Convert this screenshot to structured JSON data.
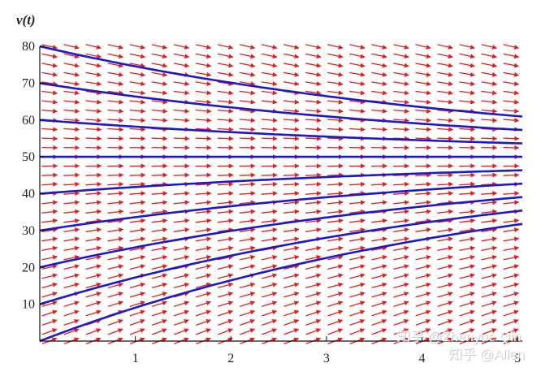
{
  "chart_data": {
    "type": "line",
    "title": "",
    "ylabel": "v(t)",
    "xlabel": "",
    "xlim": [
      0,
      5.05
    ],
    "ylim": [
      0,
      80
    ],
    "x_ticks": [
      1,
      2,
      3,
      4,
      5
    ],
    "x_tick_labels": [
      "1",
      "2",
      "3",
      "4",
      "5"
    ],
    "y_ticks": [
      10,
      20,
      30,
      40,
      50,
      60,
      70,
      80
    ],
    "y_tick_labels": [
      "10",
      "20",
      "30",
      "40",
      "50",
      "60",
      "70",
      "80"
    ],
    "grid": false,
    "legend": "none",
    "direction_field": {
      "equation_form": "dv/dt = 0.2 * (50 - v)",
      "x_start": 0.0,
      "x_step": 0.23,
      "x_count": 23,
      "y_start": 0,
      "y_step": 2.5,
      "y_count": 33,
      "color": "#e02020"
    },
    "solution_curves": {
      "color": "#1a1acc",
      "equilibrium": 50,
      "rate": 0.2,
      "initial_values": [
        0,
        10,
        20,
        30,
        40,
        50,
        60,
        70,
        80
      ]
    },
    "series": [
      {
        "x": [
          0,
          1,
          2,
          3,
          4,
          5
        ],
        "values": [
          0,
          9.1,
          16.5,
          22.6,
          27.5,
          31.6
        ]
      },
      {
        "x": [
          0,
          1,
          2,
          3,
          4,
          5
        ],
        "values": [
          10,
          17.3,
          23.2,
          28.0,
          32.0,
          35.3
        ]
      },
      {
        "x": [
          0,
          1,
          2,
          3,
          4,
          5
        ],
        "values": [
          20,
          25.4,
          29.9,
          33.5,
          36.5,
          39.0
        ]
      },
      {
        "x": [
          0,
          1,
          2,
          3,
          4,
          5
        ],
        "values": [
          30,
          33.6,
          36.6,
          39.0,
          41.0,
          42.6
        ]
      },
      {
        "x": [
          0,
          1,
          2,
          3,
          4,
          5
        ],
        "values": [
          40,
          41.8,
          43.3,
          44.5,
          45.5,
          46.3
        ]
      },
      {
        "x": [
          0,
          1,
          2,
          3,
          4,
          5
        ],
        "values": [
          50,
          50,
          50,
          50,
          50,
          50
        ]
      },
      {
        "x": [
          0,
          1,
          2,
          3,
          4,
          5
        ],
        "values": [
          60,
          58.2,
          56.7,
          55.5,
          54.5,
          53.7
        ]
      },
      {
        "x": [
          0,
          1,
          2,
          3,
          4,
          5
        ],
        "values": [
          70,
          66.4,
          63.4,
          61.0,
          59.0,
          57.4
        ]
      },
      {
        "x": [
          0,
          1,
          2,
          3,
          4,
          5
        ],
        "values": [
          80,
          74.6,
          70.1,
          66.5,
          63.5,
          61.0
        ]
      }
    ]
  },
  "watermark": {
    "line1": "知乎 @Zhenyue Qin",
    "line2": "知乎 @Allen"
  }
}
